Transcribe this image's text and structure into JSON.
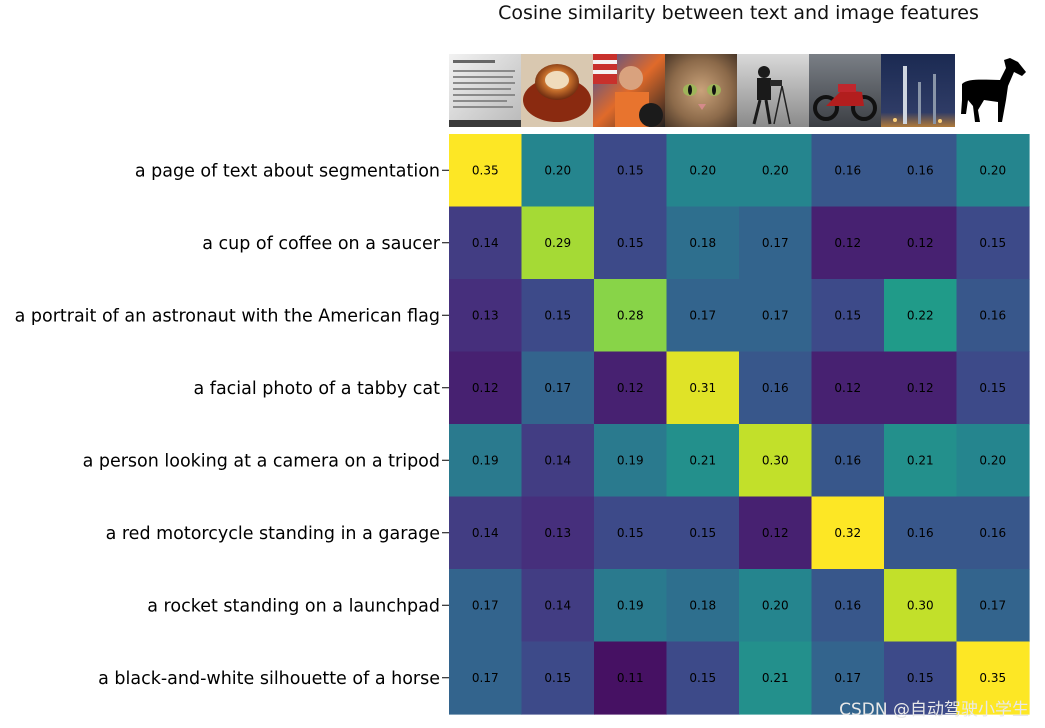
{
  "title": "Cosine similarity between text and image features",
  "watermark": "CSDN @自动驾驶小学生",
  "colors": {
    "colormap": "viridis",
    "viridis_stops": [
      "#440154",
      "#482878",
      "#3e4989",
      "#31688e",
      "#26828e",
      "#1f9e89",
      "#35b779",
      "#6ece58",
      "#b5de2b",
      "#fde725"
    ]
  },
  "chart_data": {
    "type": "heatmap",
    "colormap_range": [
      0.1,
      0.32
    ],
    "images": [
      "page-of-text",
      "coffee-cup",
      "astronaut",
      "tabby-cat",
      "camera-tripod",
      "motorcycle",
      "rocket",
      "horse-silhouette"
    ],
    "rows": [
      "a page of text about segmentation",
      "a cup of coffee on a saucer",
      "a portrait of an astronaut with the American flag",
      "a facial photo of a tabby cat",
      "a person looking at a camera on a tripod",
      "a red motorcycle standing in a garage",
      "a rocket standing on a launchpad",
      "a black-and-white silhouette of a horse"
    ],
    "values": [
      [
        0.35,
        0.2,
        0.15,
        0.2,
        0.2,
        0.16,
        0.16,
        0.2
      ],
      [
        0.14,
        0.29,
        0.15,
        0.18,
        0.17,
        0.12,
        0.12,
        0.15
      ],
      [
        0.13,
        0.15,
        0.28,
        0.17,
        0.17,
        0.15,
        0.22,
        0.16
      ],
      [
        0.12,
        0.17,
        0.12,
        0.31,
        0.16,
        0.12,
        0.12,
        0.15
      ],
      [
        0.19,
        0.14,
        0.19,
        0.21,
        0.3,
        0.16,
        0.21,
        0.2
      ],
      [
        0.14,
        0.13,
        0.15,
        0.15,
        0.12,
        0.32,
        0.16,
        0.16
      ],
      [
        0.17,
        0.14,
        0.19,
        0.18,
        0.2,
        0.16,
        0.3,
        0.17
      ],
      [
        0.17,
        0.15,
        0.11,
        0.15,
        0.21,
        0.17,
        0.15,
        0.35
      ]
    ],
    "labels": [
      [
        "0.35",
        "0.20",
        "0.15",
        "0.20",
        "0.20",
        "0.16",
        "0.16",
        "0.20"
      ],
      [
        "0.14",
        "0.29",
        "0.15",
        "0.18",
        "0.17",
        "0.12",
        "0.12",
        "0.15"
      ],
      [
        "0.13",
        "0.15",
        "0.28",
        "0.17",
        "0.17",
        "0.15",
        "0.22",
        "0.16"
      ],
      [
        "0.12",
        "0.17",
        "0.12",
        "0.31",
        "0.16",
        "0.12",
        "0.12",
        "0.15"
      ],
      [
        "0.19",
        "0.14",
        "0.19",
        "0.21",
        "0.30",
        "0.16",
        "0.21",
        "0.20"
      ],
      [
        "0.14",
        "0.13",
        "0.15",
        "0.15",
        "0.12",
        "0.32",
        "0.16",
        "0.16"
      ],
      [
        "0.17",
        "0.14",
        "0.19",
        "0.18",
        "0.20",
        "0.16",
        "0.30",
        "0.17"
      ],
      [
        "0.17",
        "0.15",
        "0.11",
        "0.15",
        "0.21",
        "0.17",
        "0.15",
        "0.35"
      ]
    ]
  }
}
